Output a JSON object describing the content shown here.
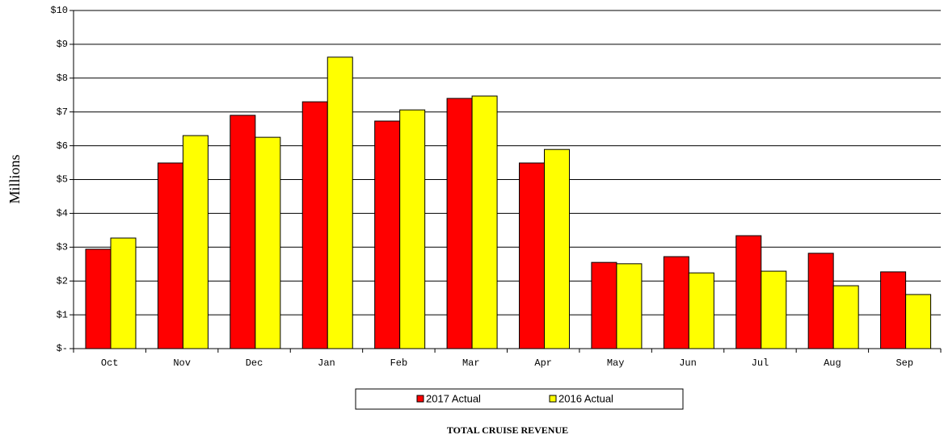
{
  "chart_data": {
    "type": "bar",
    "title": "TOTAL CRUISE REVENUE",
    "y_label": "Millions",
    "categories": [
      "Oct",
      "Nov",
      "Dec",
      "Jan",
      "Feb",
      "Mar",
      "Apr",
      "May",
      "Jun",
      "Jul",
      "Aug",
      "Sep"
    ],
    "series": [
      {
        "name": "2017 Actual",
        "color": "#ff0000",
        "values": [
          2.94,
          5.49,
          6.9,
          7.3,
          6.73,
          7.4,
          5.49,
          2.55,
          2.72,
          3.34,
          2.82,
          2.27
        ]
      },
      {
        "name": "2016 Actual",
        "color": "#ffff00",
        "values": [
          3.27,
          6.3,
          6.25,
          8.62,
          7.06,
          7.47,
          5.89,
          2.51,
          2.24,
          2.29,
          1.86,
          1.6
        ]
      }
    ],
    "ylim": [
      0,
      10
    ],
    "yticks": [
      {
        "value": 0,
        "label": "$-"
      },
      {
        "value": 1,
        "label": "$1"
      },
      {
        "value": 2,
        "label": "$2"
      },
      {
        "value": 3,
        "label": "$3"
      },
      {
        "value": 4,
        "label": "$4"
      },
      {
        "value": 5,
        "label": "$5"
      },
      {
        "value": 6,
        "label": "$6"
      },
      {
        "value": 7,
        "label": "$7"
      },
      {
        "value": 8,
        "label": "$8"
      },
      {
        "value": 9,
        "label": "$9"
      },
      {
        "value": 10,
        "label": "$10"
      }
    ],
    "grid": true
  }
}
